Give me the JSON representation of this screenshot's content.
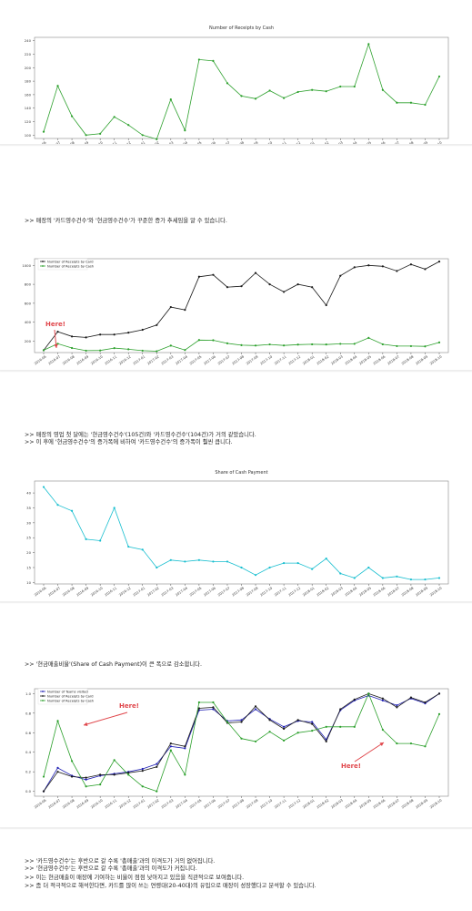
{
  "dates": [
    "2016-06",
    "2016-07",
    "2016-08",
    "2016-09",
    "2016-10",
    "2016-11",
    "2016-12",
    "2017-01",
    "2017-02",
    "2017-03",
    "2017-04",
    "2017-05",
    "2017-06",
    "2017-07",
    "2017-08",
    "2017-09",
    "2017-10",
    "2017-11",
    "2017-12",
    "2018-01",
    "2018-02",
    "2018-03",
    "2018-04",
    "2018-05",
    "2018-06",
    "2018-07",
    "2018-08",
    "2018-09",
    "2018-10"
  ],
  "notes": {
    "note1": ">> 매장의 '카드영수건수'와 '현금영수건수'가 꾸준한 증가 추세임을 알 수 있습니다.",
    "note2_line1": ">> 매장의 영업 첫 달에는 '현금영수건수'(105건)와 '카드영수건수'(104건)가 거의 같았습니다.",
    "note2_line2": ">> 이 후에 '현금영수건수'의 증가폭에 비하여 '카드영수건수'의 증가폭이 훨씬 큽니다.",
    "note3": ">> '현금매출비율'(Share of Cash Payment)이 큰 폭으로 감소합니다.",
    "note4_line1": ">> '카드영수건수'는 후반으로 갈 수록 '총매출'과의 이격도가 거의 없어집니다.",
    "note4_line2": ">> '현금영수건수'는 후반으로 갈 수록 '총매출'과의 이격도가 커집니다.",
    "note4_line3": ">> 이는 현금매출이 매장에 기여하는 비율이 점점 낮아지고 있음을 직관적으로 보여줍니다.",
    "note4_line4": ">> 좀 더 적극적으로 해석한다면, 카드를 많이 쓰는 연령대(20-40대)의 유입으로 매장이 성장했다고 분석할 수 있습니다."
  },
  "colors": {
    "card": "#1a1a1a",
    "cash": "#2ca02c",
    "share": "#17becf",
    "visited": "#1f1fb4",
    "annotation": "#e0474c"
  },
  "chart_data": [
    {
      "type": "line",
      "title": "Number of Receipts by Cash",
      "xlabel": "",
      "ylabel": "",
      "ylim": [
        95,
        245
      ],
      "yticks": [
        100,
        120,
        140,
        160,
        180,
        200,
        220,
        240
      ],
      "grid": false,
      "series": [
        {
          "name": "Number of Receipts by Cash",
          "values": [
            105,
            173,
            128,
            100,
            102,
            127,
            115,
            100,
            94,
            153,
            107,
            212,
            210,
            177,
            158,
            154,
            166,
            155,
            164,
            167,
            165,
            172,
            172,
            235,
            167,
            148,
            148,
            145,
            187
          ]
        }
      ]
    },
    {
      "type": "line",
      "title": "",
      "xlabel": "",
      "ylabel": "",
      "ylim": [
        80,
        1070
      ],
      "yticks": [
        200,
        400,
        600,
        800,
        1000
      ],
      "legend": "top-left",
      "annotation": "Here!",
      "series": [
        {
          "name": "Number of Receipts by Card",
          "values": [
            104,
            300,
            250,
            240,
            270,
            270,
            290,
            320,
            370,
            560,
            530,
            880,
            900,
            770,
            780,
            920,
            800,
            720,
            800,
            770,
            580,
            890,
            980,
            1000,
            990,
            940,
            1010,
            960,
            1040
          ]
        },
        {
          "name": "Number of Receipts by Cash",
          "values": [
            105,
            173,
            128,
            100,
            102,
            127,
            115,
            100,
            94,
            153,
            107,
            212,
            210,
            177,
            158,
            154,
            166,
            155,
            164,
            167,
            165,
            172,
            172,
            235,
            167,
            148,
            148,
            145,
            187
          ]
        }
      ]
    },
    {
      "type": "line",
      "title": "Share of Cash Payment",
      "xlabel": "",
      "ylabel": "",
      "ylim": [
        9.5,
        44
      ],
      "yticks": [
        10,
        15,
        20,
        25,
        30,
        35,
        40
      ],
      "series": [
        {
          "name": "Share of Cash Payment",
          "values": [
            42,
            36,
            34,
            24.5,
            24,
            35,
            22,
            21,
            15,
            17.5,
            17,
            17.5,
            17,
            17,
            15,
            12.5,
            15,
            16.5,
            16.5,
            14.5,
            18,
            13,
            11.5,
            15,
            11.5,
            12,
            11,
            11,
            11.5
          ]
        }
      ]
    },
    {
      "type": "line",
      "title": "",
      "xlabel": "",
      "ylabel": "",
      "ylim": [
        -0.05,
        1.05
      ],
      "yticks": [
        0.0,
        0.2,
        0.4,
        0.6,
        0.8,
        1.0
      ],
      "legend": "top-left",
      "annotations": [
        "Here!",
        "Here!"
      ],
      "series": [
        {
          "name": "Number of Teams visited",
          "values": [
            0.0,
            0.24,
            0.16,
            0.12,
            0.16,
            0.18,
            0.2,
            0.23,
            0.28,
            0.46,
            0.44,
            0.83,
            0.84,
            0.72,
            0.73,
            0.84,
            0.74,
            0.66,
            0.72,
            0.71,
            0.53,
            0.83,
            0.93,
            0.98,
            0.93,
            0.88,
            0.95,
            0.9,
            1.0
          ]
        },
        {
          "name": "Number of Receipts by Card",
          "values": [
            0.0,
            0.2,
            0.15,
            0.14,
            0.17,
            0.17,
            0.19,
            0.21,
            0.25,
            0.49,
            0.46,
            0.85,
            0.86,
            0.7,
            0.71,
            0.87,
            0.73,
            0.64,
            0.73,
            0.69,
            0.51,
            0.84,
            0.94,
            1.0,
            0.95,
            0.86,
            0.96,
            0.91,
            1.0
          ]
        },
        {
          "name": "Number of Receipts by Cash",
          "values": [
            0.15,
            0.72,
            0.31,
            0.05,
            0.07,
            0.32,
            0.17,
            0.05,
            0.0,
            0.42,
            0.17,
            0.91,
            0.91,
            0.71,
            0.54,
            0.51,
            0.61,
            0.52,
            0.6,
            0.62,
            0.66,
            0.66,
            0.66,
            1.0,
            0.63,
            0.49,
            0.49,
            0.46,
            0.79
          ]
        }
      ]
    }
  ]
}
